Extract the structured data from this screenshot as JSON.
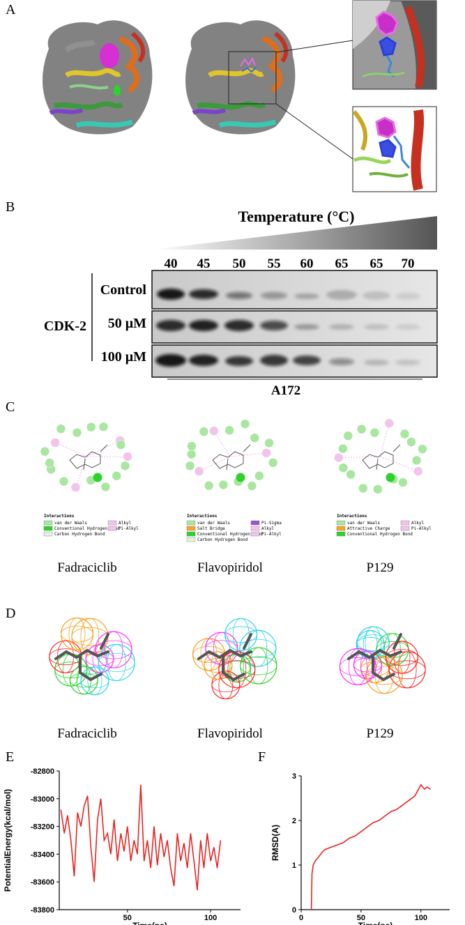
{
  "panel_labels": [
    "A",
    "B",
    "C",
    "D",
    "E",
    "F"
  ],
  "blot": {
    "title": "Temperature (°C)",
    "temperatures": [
      40,
      45,
      50,
      55,
      60,
      65,
      65,
      70
    ],
    "protein": "CDK-2",
    "conditions": [
      "Control",
      "50 μM",
      "100 μM"
    ],
    "cell_line": "A172"
  },
  "interaction_diagrams": [
    {
      "name": "Fadraciclib",
      "legend_title": "Interactions",
      "legend": [
        {
          "label": "van der Waals",
          "color": "#a9e6a0"
        },
        {
          "label": "Conventional Hydrogen Bond",
          "color": "#2bd42b"
        },
        {
          "label": "Carbon Hydrogen Bond",
          "color": "#e0f3e0"
        },
        {
          "label": "Alkyl",
          "color": "#f2c4ec"
        },
        {
          "label": "Pi-Alkyl",
          "color": "#f2c4ec"
        }
      ]
    },
    {
      "name": "Flavopiridol",
      "legend_title": "Interactions",
      "legend": [
        {
          "label": "van der Waals",
          "color": "#a9e6a0"
        },
        {
          "label": "Salt Bridge",
          "color": "#f5a623"
        },
        {
          "label": "Conventional Hydrogen Bond",
          "color": "#2bd42b"
        },
        {
          "label": "Carbon Hydrogen Bond",
          "color": "#e0f3e0"
        },
        {
          "label": "Pi-Sigma",
          "color": "#9b4fd6"
        },
        {
          "label": "Alkyl",
          "color": "#f2c4ec"
        },
        {
          "label": "Pi-Alkyl",
          "color": "#f2c4ec"
        }
      ]
    },
    {
      "name": "P129",
      "legend_title": "Interactions",
      "legend": [
        {
          "label": "van der Waals",
          "color": "#a9e6a0"
        },
        {
          "label": "Attractive Charge",
          "color": "#f5a623"
        },
        {
          "label": "Conventional Hydrogen Bond",
          "color": "#2bd42b"
        },
        {
          "label": "Alkyl",
          "color": "#f2c4ec"
        },
        {
          "label": "Pi-Alkyl",
          "color": "#f2c4ec"
        }
      ]
    }
  ],
  "pharmacophores": [
    "Fadraciclib",
    "Flavopiridol",
    "P129"
  ],
  "chart_data": [
    {
      "type": "line",
      "y_label": "PotentialEnergy(kcal/mol)",
      "x_label": "Time(ps)",
      "x": [
        10,
        12,
        14,
        16,
        18,
        20,
        22,
        24,
        26,
        28,
        30,
        32,
        34,
        36,
        38,
        40,
        42,
        44,
        46,
        48,
        50,
        52,
        54,
        56,
        58,
        60,
        62,
        64,
        66,
        68,
        70,
        72,
        74,
        76,
        78,
        80,
        82,
        84,
        86,
        88,
        90,
        92,
        94,
        96,
        98,
        100,
        102,
        104,
        106
      ],
      "series": [
        {
          "name": "PotentialEnergy",
          "color": "#e8231f",
          "values": [
            -83080,
            -83250,
            -83120,
            -83300,
            -83560,
            -83100,
            -83200,
            -83050,
            -82980,
            -83350,
            -83600,
            -83150,
            -83000,
            -83300,
            -83250,
            -83400,
            -83150,
            -83450,
            -83250,
            -83380,
            -83200,
            -83450,
            -83300,
            -83400,
            -82900,
            -83450,
            -83300,
            -83500,
            -83200,
            -83480,
            -83250,
            -83420,
            -83300,
            -83500,
            -83630,
            -83250,
            -83450,
            -83320,
            -83500,
            -83250,
            -83450,
            -83660,
            -83300,
            -83500,
            -83250,
            -83450,
            -83350,
            -83500,
            -83300
          ]
        }
      ],
      "xlim": [
        9,
        118
      ],
      "xticks": [
        50,
        100
      ],
      "ylim": [
        -83800,
        -82800
      ],
      "yticks": [
        -83800,
        -83600,
        -83400,
        -83200,
        -83000,
        -82800
      ]
    },
    {
      "type": "line",
      "y_label": "RMSD(A)",
      "x_label": "Time(ps)",
      "x": [
        8.5,
        9,
        10,
        12,
        15,
        18,
        20,
        25,
        30,
        35,
        40,
        45,
        50,
        55,
        60,
        65,
        70,
        75,
        80,
        85,
        90,
        95,
        98,
        100,
        103,
        105,
        108
      ],
      "series": [
        {
          "name": "RMSD",
          "color": "#e8231f",
          "values": [
            0,
            0.8,
            1.0,
            1.1,
            1.2,
            1.3,
            1.35,
            1.4,
            1.45,
            1.5,
            1.6,
            1.65,
            1.75,
            1.85,
            1.95,
            2.0,
            2.1,
            2.2,
            2.25,
            2.35,
            2.45,
            2.55,
            2.7,
            2.8,
            2.7,
            2.75,
            2.7
          ]
        }
      ],
      "xlim": [
        0,
        124
      ],
      "xticks": [
        0,
        50,
        100
      ],
      "ylim": [
        0,
        3
      ],
      "yticks": [
        0,
        1,
        2,
        3
      ]
    }
  ]
}
